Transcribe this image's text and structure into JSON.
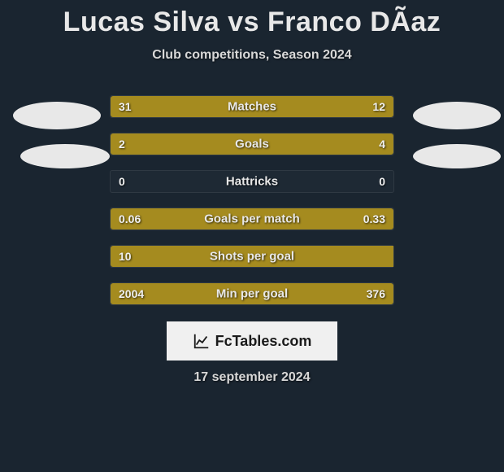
{
  "title": "Lucas Silva vs Franco DÃ­az",
  "subtitle": "Club competitions, Season 2024",
  "date": "17 september 2024",
  "logo_text": "FcTables.com",
  "colors": {
    "background": "#1a2530",
    "bar": "#a58b1f",
    "text": "#e8e8e8",
    "avatar": "#e8e8e8",
    "logo_bg": "#f0f0f0"
  },
  "rows": [
    {
      "label": "Matches",
      "left_val": "31",
      "right_val": "12",
      "left_pct": 68,
      "right_pct": 32
    },
    {
      "label": "Goals",
      "left_val": "2",
      "right_val": "4",
      "left_pct": 30,
      "right_pct": 70
    },
    {
      "label": "Hattricks",
      "left_val": "0",
      "right_val": "0",
      "left_pct": 0,
      "right_pct": 0
    },
    {
      "label": "Goals per match",
      "left_val": "0.06",
      "right_val": "0.33",
      "left_pct": 15,
      "right_pct": 85
    },
    {
      "label": "Shots per goal",
      "left_val": "10",
      "right_val": "",
      "left_pct": 100,
      "right_pct": 0
    },
    {
      "label": "Min per goal",
      "left_val": "2004",
      "right_val": "376",
      "left_pct": 84,
      "right_pct": 16
    }
  ]
}
